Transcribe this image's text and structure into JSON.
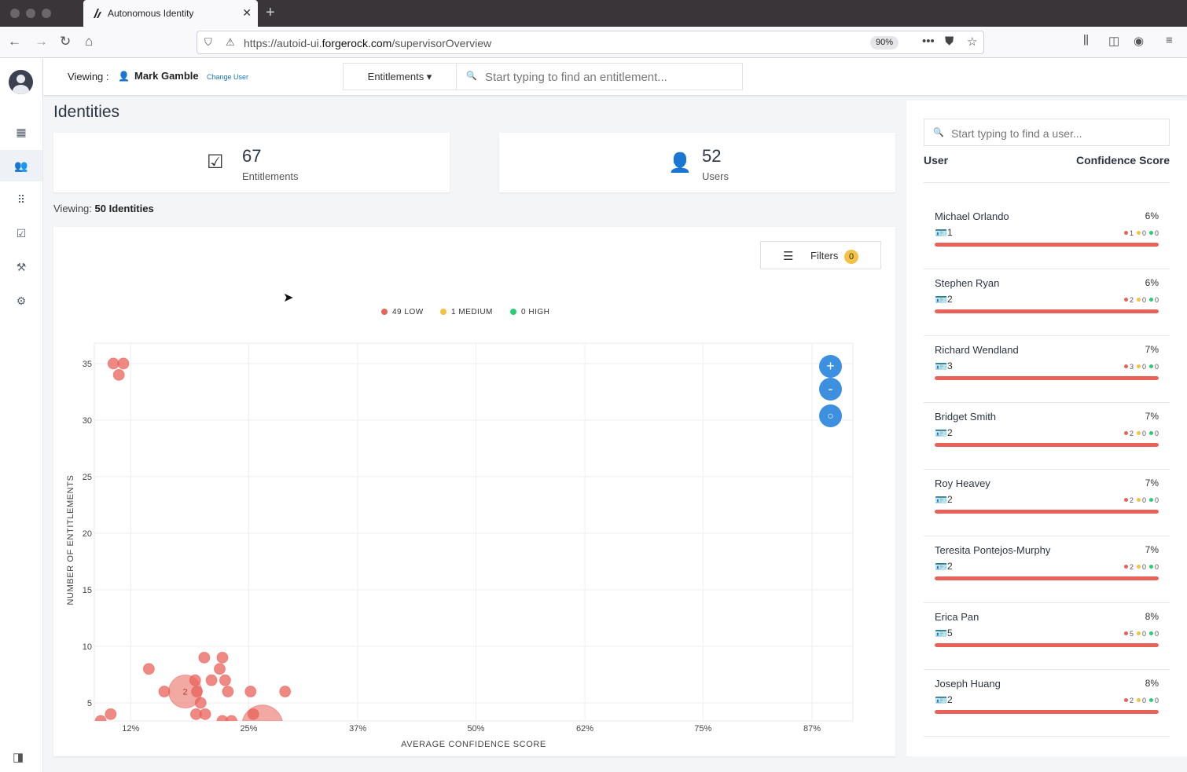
{
  "browser": {
    "tab_title": "Autonomous Identity",
    "url_prefix": "https://autoid-ui.",
    "url_domain": "forgerock.com",
    "url_path": "/supervisorOverview",
    "zoom": "90%"
  },
  "header": {
    "viewing_label": "Viewing :",
    "viewing_name": "Mark Gamble",
    "change_user": "Change User",
    "entitlements_dropdown": "Entitlements ▾",
    "search_placeholder": "Start typing to find an entitlement..."
  },
  "page": {
    "title": "Identities",
    "viewing_prefix": "Viewing:",
    "viewing_count": "50 Identities"
  },
  "stats": {
    "entitlements": {
      "value": "67",
      "label": "Entitlements"
    },
    "users": {
      "value": "52",
      "label": "Users"
    }
  },
  "filters": {
    "label": "Filters",
    "count": "0"
  },
  "legend": {
    "low": "49 LOW",
    "medium": "1 MEDIUM",
    "high": "0 HIGH"
  },
  "colors": {
    "low": "#e8625a",
    "medium": "#f4c244",
    "high": "#2ecc71",
    "accent": "#3d8fe0"
  },
  "chart_data": {
    "type": "scatter",
    "xlabel": "AVERAGE CONFIDENCE SCORE",
    "ylabel": "NUMBER OF ENTITLEMENTS",
    "x_ticks": [
      "12%",
      "25%",
      "37%",
      "50%",
      "62%",
      "75%",
      "87%"
    ],
    "y_ticks": [
      5,
      10,
      15,
      20,
      25,
      30,
      35
    ],
    "xlim": [
      8,
      91.5
    ],
    "ylim": [
      3.4,
      36.8
    ],
    "grid": true,
    "points": [
      {
        "x": 10.1,
        "y": 35,
        "n": 1
      },
      {
        "x": 11.2,
        "y": 35,
        "n": 1
      },
      {
        "x": 10.7,
        "y": 34,
        "n": 1
      },
      {
        "x": 14,
        "y": 8,
        "n": 1
      },
      {
        "x": 15.7,
        "y": 6,
        "n": 1
      },
      {
        "x": 18,
        "y": 6,
        "n": 2
      },
      {
        "x": 19.3,
        "y": 6,
        "n": 1
      },
      {
        "x": 19.1,
        "y": 7,
        "n": 1
      },
      {
        "x": 19.7,
        "y": 5,
        "n": 1
      },
      {
        "x": 20.1,
        "y": 9,
        "n": 1
      },
      {
        "x": 20.9,
        "y": 7,
        "n": 1
      },
      {
        "x": 21.8,
        "y": 8,
        "n": 1
      },
      {
        "x": 22.1,
        "y": 9,
        "n": 1
      },
      {
        "x": 22.4,
        "y": 7,
        "n": 1
      },
      {
        "x": 22.7,
        "y": 6,
        "n": 1
      },
      {
        "x": 19.2,
        "y": 4,
        "n": 1
      },
      {
        "x": 20.2,
        "y": 4,
        "n": 1
      },
      {
        "x": 9.8,
        "y": 4,
        "n": 1
      },
      {
        "x": 25.2,
        "y": 6,
        "n": 1
      },
      {
        "x": 25.5,
        "y": 4,
        "n": 1
      },
      {
        "x": 29,
        "y": 6,
        "n": 1
      },
      {
        "x": 26.5,
        "y": 3,
        "n": 3
      },
      {
        "x": 8.7,
        "y": 3.4,
        "n": 1
      },
      {
        "x": 22.1,
        "y": 3.4,
        "n": 1
      },
      {
        "x": 23.1,
        "y": 3.4,
        "n": 1
      }
    ]
  },
  "panel": {
    "search_placeholder": "Start typing to find a user...",
    "col_user": "User",
    "col_score": "Confidence Score",
    "users": [
      {
        "name": "Michael Orlando",
        "score": "6%",
        "count": "1",
        "low": "1",
        "med": "0",
        "high": "0",
        "fill": 1
      },
      {
        "name": "Stephen Ryan",
        "score": "6%",
        "count": "2",
        "low": "2",
        "med": "0",
        "high": "0",
        "fill": 1
      },
      {
        "name": "Richard Wendland",
        "score": "7%",
        "count": "3",
        "low": "3",
        "med": "0",
        "high": "0",
        "fill": 1
      },
      {
        "name": "Bridget Smith",
        "score": "7%",
        "count": "2",
        "low": "2",
        "med": "0",
        "high": "0",
        "fill": 1
      },
      {
        "name": "Roy Heavey",
        "score": "7%",
        "count": "2",
        "low": "2",
        "med": "0",
        "high": "0",
        "fill": 1
      },
      {
        "name": "Teresita Pontejos-Murphy",
        "score": "7%",
        "count": "2",
        "low": "2",
        "med": "0",
        "high": "0",
        "fill": 1
      },
      {
        "name": "Erica Pan",
        "score": "8%",
        "count": "5",
        "low": "5",
        "med": "0",
        "high": "0",
        "fill": 1
      },
      {
        "name": "Joseph Huang",
        "score": "8%",
        "count": "2",
        "low": "2",
        "med": "0",
        "high": "0",
        "fill": 1
      }
    ]
  }
}
